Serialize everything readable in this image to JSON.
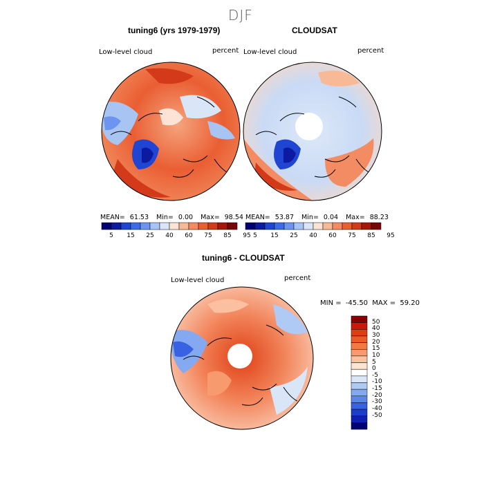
{
  "season": "DJF",
  "panels": [
    {
      "title": "tuning6 (yrs 1979-1979)",
      "variable": "Low-level cloud",
      "units": "percent",
      "mean": "61.53",
      "min": "0.00",
      "max": "98.54"
    },
    {
      "title": "CLOUDSAT",
      "variable": "Low-level cloud",
      "units": "percent",
      "mean": "53.87",
      "min": "0.04",
      "max": "88.23"
    }
  ],
  "stat_labels": {
    "mean": "MEAN=",
    "min": "Min=",
    "max": "Max="
  },
  "abs_colorbar": {
    "colors": [
      "#00006e",
      "#0c1aa0",
      "#2145d3",
      "#3d6ae8",
      "#6d94ef",
      "#a8c4f3",
      "#d8e6f8",
      "#fbe4d5",
      "#f8b997",
      "#f38c62",
      "#ea5e33",
      "#d33a1a",
      "#a81509",
      "#7a0505"
    ],
    "labels": [
      "5",
      "15",
      "25",
      "40",
      "60",
      "75",
      "85",
      "95"
    ]
  },
  "diff": {
    "title": "tuning6 - CLOUDSAT",
    "variable": "Low-level cloud",
    "units": "percent",
    "min_label": "MIN =",
    "min": "-45.50",
    "max_label": "MAX =",
    "max": "59.20",
    "colorbar": {
      "colors": [
        "#8b0000",
        "#c81a07",
        "#e03d12",
        "#ee5a25",
        "#f37a44",
        "#f79b6e",
        "#fac0a0",
        "#fde3d0",
        "#ffffff",
        "#d8e6f8",
        "#aecaf5",
        "#84a9f1",
        "#5c86ea",
        "#3862e2",
        "#1b3ecf",
        "#0f20b0",
        "#00007a"
      ],
      "labels": [
        "50",
        "40",
        "30",
        "20",
        "15",
        "10",
        "5",
        "0",
        "-5",
        "-10",
        "-15",
        "-20",
        "-30",
        "-40",
        "-50"
      ]
    }
  }
}
